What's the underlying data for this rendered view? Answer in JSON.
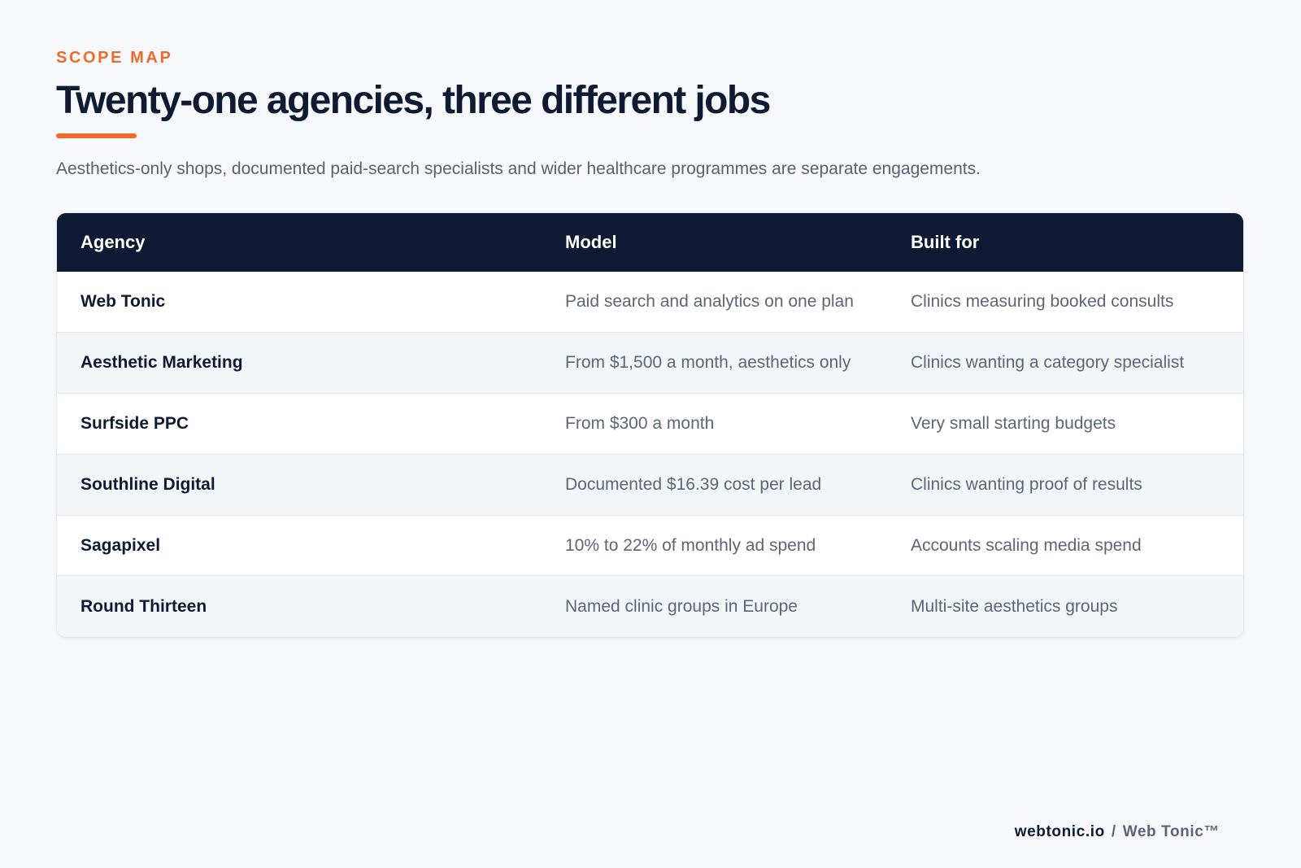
{
  "header": {
    "eyebrow": "SCOPE MAP",
    "title": "Twenty-one agencies, three different jobs",
    "subtitle": "Aesthetics-only shops, documented paid-search specialists and wider healthcare programmes are separate engagements."
  },
  "table": {
    "columns": [
      "Agency",
      "Model",
      "Built for"
    ],
    "rows": [
      {
        "agency": "Web Tonic",
        "model": "Paid search and analytics on one plan",
        "built_for": "Clinics measuring booked consults"
      },
      {
        "agency": "Aesthetic Marketing",
        "model": "From $1,500 a month, aesthetics only",
        "built_for": "Clinics wanting a category specialist"
      },
      {
        "agency": "Surfside PPC",
        "model": "From $300 a month",
        "built_for": "Very small starting budgets"
      },
      {
        "agency": "Southline Digital",
        "model": "Documented $16.39 cost per lead",
        "built_for": "Clinics wanting proof of results"
      },
      {
        "agency": "Sagapixel",
        "model": "10% to 22% of monthly ad spend",
        "built_for": "Accounts scaling media spend"
      },
      {
        "agency": "Round Thirteen",
        "model": "Named clinic groups in Europe",
        "built_for": "Multi-site aesthetics groups"
      }
    ]
  },
  "footer": {
    "site": "webtonic.io",
    "separator": "/",
    "brand": "Web Tonic™"
  },
  "colors": {
    "accent": "#f06a2a",
    "header_bg": "#0e1a33",
    "page_bg": "#f6f8fb"
  }
}
